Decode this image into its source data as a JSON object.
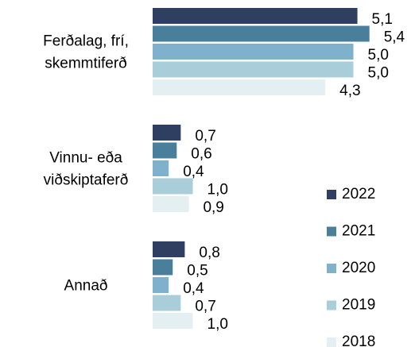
{
  "chart_data": {
    "type": "hbar",
    "categories": [
      [
        "Ferðalag, frí,",
        "skemmtiferð"
      ],
      [
        "Vinnu- eða",
        "viðskiptaferð"
      ],
      [
        "Annað"
      ]
    ],
    "series": [
      {
        "name": "2022",
        "color": "#2e3f62",
        "values": [
          5.1,
          0.7,
          0.8
        ],
        "value_labels": [
          "5,1",
          "0,7",
          "0,8"
        ]
      },
      {
        "name": "2021",
        "color": "#4a7f9b",
        "values": [
          5.4,
          0.6,
          0.5
        ],
        "value_labels": [
          "5,4",
          "0,6",
          "0,5"
        ]
      },
      {
        "name": "2020",
        "color": "#7fb1cc",
        "values": [
          5.0,
          0.4,
          0.4
        ],
        "value_labels": [
          "5,0",
          "0,4",
          "0,4"
        ]
      },
      {
        "name": "2019",
        "color": "#a9cdd9",
        "values": [
          5.0,
          1.0,
          0.7
        ],
        "value_labels": [
          "5,0",
          "1,0",
          "0,7"
        ]
      },
      {
        "name": "2018",
        "color": "#e4eff2",
        "values": [
          4.3,
          0.9,
          1.0
        ],
        "value_labels": [
          "4,3",
          "0,9",
          "1,0"
        ]
      }
    ],
    "legend": "right"
  }
}
